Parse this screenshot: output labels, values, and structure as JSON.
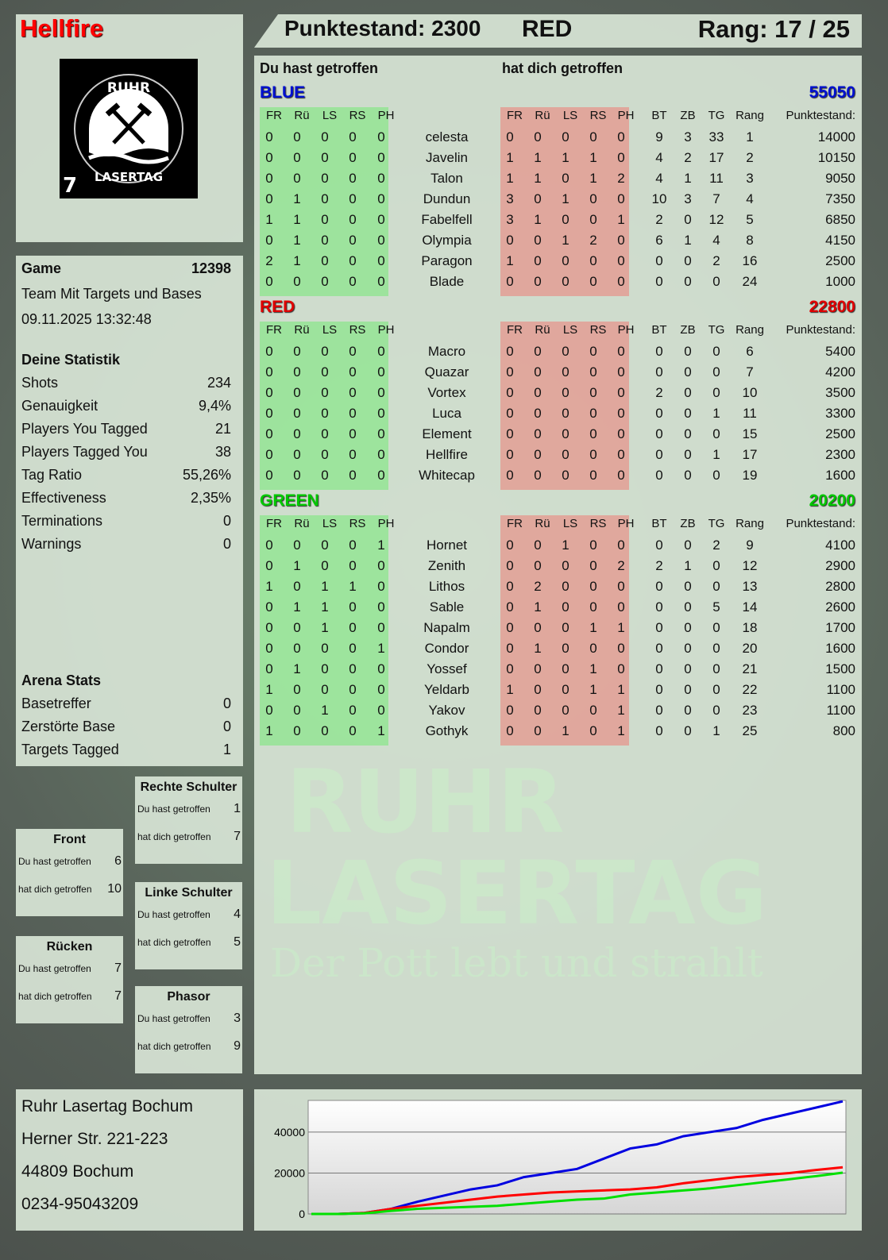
{
  "player": {
    "name": "Hellfire",
    "logo_text_top": "RUHR",
    "logo_text_bottom": "LASERTAG",
    "logo_number": "7"
  },
  "header": {
    "score_label": "Punktestand: 2300",
    "team": "RED",
    "rank_label": "Rang: 17 / 25"
  },
  "game": {
    "label": "Game",
    "id": "12398",
    "mode": "Team Mit Targets und Bases",
    "datetime": "09.11.2025 13:32:48"
  },
  "stats": {
    "title": "Deine Statistik",
    "items": [
      {
        "label": "Shots",
        "value": "234"
      },
      {
        "label": "Genauigkeit",
        "value": "9,4%"
      },
      {
        "label": "Players You Tagged",
        "value": "21"
      },
      {
        "label": "Players Tagged You",
        "value": "38"
      },
      {
        "label": "Tag Ratio",
        "value": "55,26%"
      },
      {
        "label": "Effectiveness",
        "value": "2,35%"
      },
      {
        "label": "Terminations",
        "value": "0"
      },
      {
        "label": "Warnings",
        "value": "0"
      }
    ]
  },
  "arena": {
    "title": "Arena Stats",
    "items": [
      {
        "label": "Basetreffer",
        "value": "0"
      },
      {
        "label": "Zerstörte Base",
        "value": "0"
      },
      {
        "label": "Targets Tagged",
        "value": "1"
      }
    ]
  },
  "zones": [
    {
      "title": "Front",
      "you_hit_label": "Du hast getroffen",
      "you_hit": "6",
      "hit_you_label": "hat dich getroffen",
      "hit_you": "10"
    },
    {
      "title": "Rechte Schulter",
      "you_hit_label": "Du hast getroffen",
      "you_hit": "1",
      "hit_you_label": "hat dich getroffen",
      "hit_you": "7"
    },
    {
      "title": "Rücken",
      "you_hit_label": "Du hast getroffen",
      "you_hit": "7",
      "hit_you_label": "hat dich getroffen",
      "hit_you": "7"
    },
    {
      "title": "Linke Schulter",
      "you_hit_label": "Du hast getroffen",
      "you_hit": "4",
      "hit_you_label": "hat dich getroffen",
      "hit_you": "5"
    },
    {
      "title": "Phasor",
      "you_hit_label": "Du hast getroffen",
      "you_hit": "3",
      "hit_you_label": "hat dich getroffen",
      "hit_you": "9"
    }
  ],
  "address": [
    "Ruhr Lasertag Bochum",
    "Herner Str. 221-223",
    "44809 Bochum",
    "0234-95043209"
  ],
  "table": {
    "you_hit_label": "Du hast getroffen",
    "hit_you_label": "hat dich getroffen",
    "hit_cols": [
      "FR",
      "Rü",
      "LS",
      "RS",
      "PH"
    ],
    "stat_cols": [
      "BT",
      "ZB",
      "TG",
      "Rang"
    ],
    "score_col": "Punktestand:",
    "teams": [
      {
        "name": "BLUE",
        "color": "#0010d0",
        "score": "55050",
        "players": [
          [
            [
              0,
              0,
              0,
              0,
              0
            ],
            "celesta",
            [
              0,
              0,
              0,
              0,
              0
            ],
            9,
            3,
            33,
            1,
            14000
          ],
          [
            [
              0,
              0,
              0,
              0,
              0
            ],
            "Javelin",
            [
              1,
              1,
              1,
              1,
              0
            ],
            4,
            2,
            17,
            2,
            10150
          ],
          [
            [
              0,
              0,
              0,
              0,
              0
            ],
            "Talon",
            [
              1,
              1,
              0,
              1,
              2
            ],
            4,
            1,
            11,
            3,
            9050
          ],
          [
            [
              0,
              1,
              0,
              0,
              0
            ],
            "Dundun",
            [
              3,
              0,
              1,
              0,
              0
            ],
            10,
            3,
            7,
            4,
            7350
          ],
          [
            [
              1,
              1,
              0,
              0,
              0
            ],
            "Fabelfell",
            [
              3,
              1,
              0,
              0,
              1
            ],
            2,
            0,
            12,
            5,
            6850
          ],
          [
            [
              0,
              1,
              0,
              0,
              0
            ],
            "Olympia",
            [
              0,
              0,
              1,
              2,
              0
            ],
            6,
            1,
            4,
            8,
            4150
          ],
          [
            [
              2,
              1,
              0,
              0,
              0
            ],
            "Paragon",
            [
              1,
              0,
              0,
              0,
              0
            ],
            0,
            0,
            2,
            16,
            2500
          ],
          [
            [
              0,
              0,
              0,
              0,
              0
            ],
            "Blade",
            [
              0,
              0,
              0,
              0,
              0
            ],
            0,
            0,
            0,
            24,
            1000
          ]
        ]
      },
      {
        "name": "RED",
        "color": "#e00000",
        "score": "22800",
        "players": [
          [
            [
              0,
              0,
              0,
              0,
              0
            ],
            "Macro",
            [
              0,
              0,
              0,
              0,
              0
            ],
            0,
            0,
            0,
            6,
            5400
          ],
          [
            [
              0,
              0,
              0,
              0,
              0
            ],
            "Quazar",
            [
              0,
              0,
              0,
              0,
              0
            ],
            0,
            0,
            0,
            7,
            4200
          ],
          [
            [
              0,
              0,
              0,
              0,
              0
            ],
            "Vortex",
            [
              0,
              0,
              0,
              0,
              0
            ],
            2,
            0,
            0,
            10,
            3500
          ],
          [
            [
              0,
              0,
              0,
              0,
              0
            ],
            "Luca",
            [
              0,
              0,
              0,
              0,
              0
            ],
            0,
            0,
            1,
            11,
            3300
          ],
          [
            [
              0,
              0,
              0,
              0,
              0
            ],
            "Element",
            [
              0,
              0,
              0,
              0,
              0
            ],
            0,
            0,
            0,
            15,
            2500
          ],
          [
            [
              0,
              0,
              0,
              0,
              0
            ],
            "Hellfire",
            [
              0,
              0,
              0,
              0,
              0
            ],
            0,
            0,
            1,
            17,
            2300
          ],
          [
            [
              0,
              0,
              0,
              0,
              0
            ],
            "Whitecap",
            [
              0,
              0,
              0,
              0,
              0
            ],
            0,
            0,
            0,
            19,
            1600
          ]
        ]
      },
      {
        "name": "GREEN",
        "color": "#00c800",
        "score": "20200",
        "players": [
          [
            [
              0,
              0,
              0,
              0,
              1
            ],
            "Hornet",
            [
              0,
              0,
              1,
              0,
              0
            ],
            0,
            0,
            2,
            9,
            4100
          ],
          [
            [
              0,
              1,
              0,
              0,
              0
            ],
            "Zenith",
            [
              0,
              0,
              0,
              0,
              2
            ],
            2,
            1,
            0,
            12,
            2900
          ],
          [
            [
              1,
              0,
              1,
              1,
              0
            ],
            "Lithos",
            [
              0,
              2,
              0,
              0,
              0
            ],
            0,
            0,
            0,
            13,
            2800
          ],
          [
            [
              0,
              1,
              1,
              0,
              0
            ],
            "Sable",
            [
              0,
              1,
              0,
              0,
              0
            ],
            0,
            0,
            5,
            14,
            2600
          ],
          [
            [
              0,
              0,
              1,
              0,
              0
            ],
            "Napalm",
            [
              0,
              0,
              0,
              1,
              1
            ],
            0,
            0,
            0,
            18,
            1700
          ],
          [
            [
              0,
              0,
              0,
              0,
              1
            ],
            "Condor",
            [
              0,
              1,
              0,
              0,
              0
            ],
            0,
            0,
            0,
            20,
            1600
          ],
          [
            [
              0,
              1,
              0,
              0,
              0
            ],
            "Yossef",
            [
              0,
              0,
              0,
              1,
              0
            ],
            0,
            0,
            0,
            21,
            1500
          ],
          [
            [
              1,
              0,
              0,
              0,
              0
            ],
            "Yeldarb",
            [
              1,
              0,
              0,
              1,
              1
            ],
            0,
            0,
            0,
            22,
            1100
          ],
          [
            [
              0,
              0,
              1,
              0,
              0
            ],
            "Yakov",
            [
              0,
              0,
              0,
              0,
              1
            ],
            0,
            0,
            0,
            23,
            1100
          ],
          [
            [
              1,
              0,
              0,
              0,
              1
            ],
            "Gothyk",
            [
              0,
              0,
              1,
              0,
              1
            ],
            0,
            0,
            1,
            25,
            800
          ]
        ]
      }
    ]
  },
  "watermark": {
    "line1": "RUHR",
    "line2": "LASERTAG",
    "tagline": "Der Pott lebt und strahlt"
  },
  "chart_data": {
    "type": "line",
    "title": "",
    "xlabel": "",
    "ylabel": "",
    "ylim": [
      0,
      56000
    ],
    "y_ticks": [
      "0",
      "20000",
      "40000"
    ],
    "grid": true,
    "legend": "none",
    "series": [
      {
        "color": "#0000e0",
        "values": [
          0,
          0,
          500,
          2500,
          6000,
          9000,
          12000,
          14000,
          18000,
          20000,
          22000,
          27000,
          32000,
          34000,
          38000,
          40000,
          42000,
          46000,
          49000,
          52000,
          55050
        ]
      },
      {
        "color": "#ff0000",
        "values": [
          0,
          0,
          500,
          2500,
          4000,
          5500,
          7000,
          8500,
          9500,
          10500,
          11000,
          11500,
          12000,
          13000,
          15000,
          16500,
          18000,
          19000,
          20000,
          21500,
          22800
        ]
      },
      {
        "color": "#00e000",
        "values": [
          0,
          0,
          300,
          1500,
          2500,
          3000,
          3500,
          4000,
          5000,
          6000,
          7000,
          7500,
          9500,
          10500,
          11500,
          12500,
          14000,
          15500,
          17000,
          18500,
          20200
        ]
      }
    ]
  }
}
